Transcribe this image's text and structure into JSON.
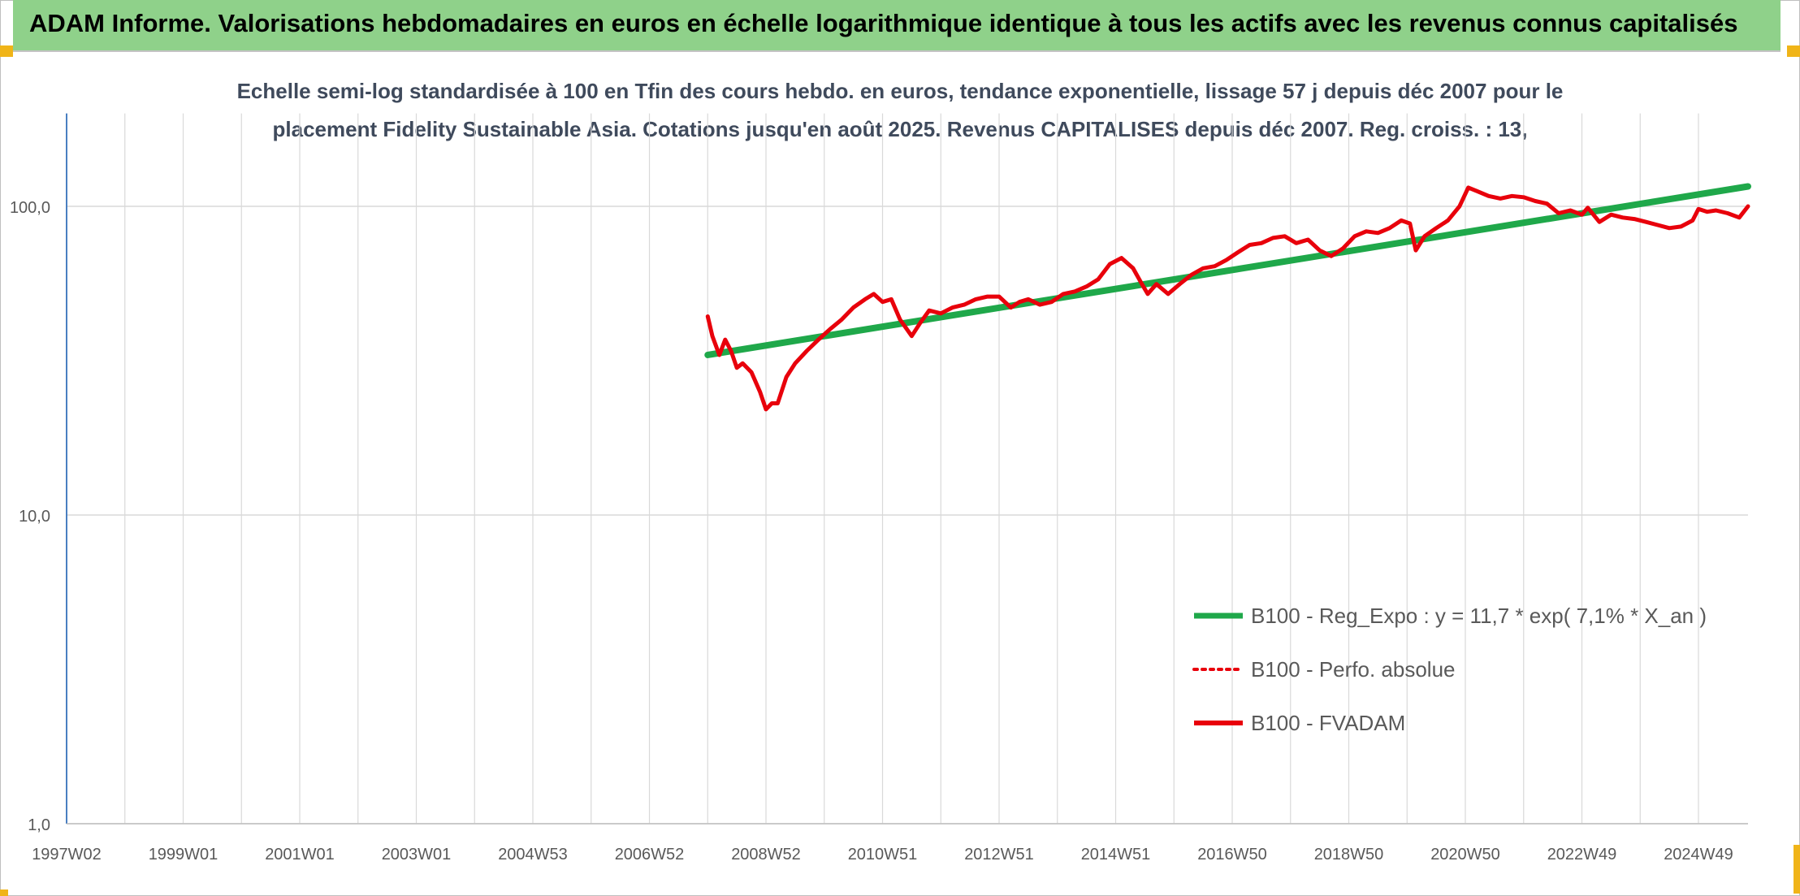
{
  "header": {
    "title": "ADAM Informe. Valorisations hebdomadaires en euros en échelle logarithmique identique à tous les actifs avec les revenus connus capitalisés"
  },
  "colors": {
    "title_bar": "#8fd18a",
    "trend": "#1fa84a",
    "series": "#e8000b",
    "accent_corner": "#f0b418",
    "grid": "#d9d9d9"
  },
  "chart_data": {
    "type": "line",
    "title": "",
    "subtitle_lines": [
      "Echelle semi-log standardisée à 100 en Tfin des cours hebdo. en euros, tendance exponentielle, lissage 57 j depuis déc 2007 pour le",
      "placement Fidelity Sustainable Asia. Cotations jusqu'en août 2025. Revenus CAPITALISES depuis déc 2007. Reg. croiss. : 13,"
    ],
    "y_scale": "log",
    "ylim": [
      1,
      200
    ],
    "y_ticks": [
      "1,0",
      "10,0",
      "100,0"
    ],
    "y_tick_values": [
      1,
      10,
      100
    ],
    "x_range": [
      1997.0,
      2025.85
    ],
    "x_tick_labels": [
      "1997W02",
      "1999W01",
      "2001W01",
      "2003W01",
      "2004W53",
      "2006W52",
      "2008W52",
      "2010W51",
      "2012W51",
      "2014W51",
      "2016W50",
      "2018W50",
      "2020W50",
      "2022W49",
      "2024W49"
    ],
    "x_tick_values": [
      1997,
      1999,
      2001,
      2003,
      2005,
      2007,
      2009,
      2011,
      2013,
      2015,
      2017,
      2019,
      2021,
      2023,
      2025
    ],
    "grid": "on",
    "legend_position": "bottom-right",
    "series": [
      {
        "name": "B100 - Reg_Expo : y = 11,7 * exp( 7,1% *  X_an )",
        "style": "solid-thick",
        "color": "#1fa84a",
        "x": [
          2008.0,
          2025.85
        ],
        "y": [
          33.0,
          116.0
        ]
      },
      {
        "name": "B100 - Perfo. absolue",
        "style": "dotted",
        "color": "#e8000b",
        "x": [],
        "y": []
      },
      {
        "name": "B100 - FVADAM",
        "style": "solid-thick",
        "color": "#e8000b",
        "x": [
          2008.0,
          2008.08,
          2008.2,
          2008.3,
          2008.4,
          2008.5,
          2008.6,
          2008.75,
          2008.9,
          2009.0,
          2009.1,
          2009.2,
          2009.35,
          2009.5,
          2009.7,
          2009.9,
          2010.1,
          2010.3,
          2010.5,
          2010.7,
          2010.85,
          2011.0,
          2011.15,
          2011.3,
          2011.5,
          2011.65,
          2011.8,
          2012.0,
          2012.2,
          2012.4,
          2012.6,
          2012.8,
          2013.0,
          2013.2,
          2013.35,
          2013.5,
          2013.7,
          2013.9,
          2014.1,
          2014.3,
          2014.5,
          2014.7,
          2014.9,
          2015.1,
          2015.3,
          2015.45,
          2015.55,
          2015.7,
          2015.9,
          2016.1,
          2016.3,
          2016.5,
          2016.7,
          2016.9,
          2017.1,
          2017.3,
          2017.5,
          2017.7,
          2017.9,
          2018.1,
          2018.3,
          2018.5,
          2018.7,
          2018.9,
          2019.1,
          2019.3,
          2019.5,
          2019.7,
          2019.9,
          2020.05,
          2020.15,
          2020.3,
          2020.5,
          2020.7,
          2020.9,
          2021.05,
          2021.2,
          2021.4,
          2021.6,
          2021.8,
          2022.0,
          2022.2,
          2022.4,
          2022.6,
          2022.8,
          2023.0,
          2023.1,
          2023.3,
          2023.5,
          2023.7,
          2023.9,
          2024.1,
          2024.3,
          2024.5,
          2024.7,
          2024.9,
          2025.0,
          2025.15,
          2025.3,
          2025.5,
          2025.7,
          2025.85
        ],
        "y": [
          44,
          38,
          33,
          37,
          34,
          30,
          31,
          29,
          25,
          22,
          23,
          23,
          28,
          31,
          34,
          37,
          40,
          43,
          47,
          50,
          52,
          49,
          50,
          43,
          38,
          42,
          46,
          45,
          47,
          48,
          50,
          51,
          51,
          47,
          49,
          50,
          48,
          49,
          52,
          53,
          55,
          58,
          65,
          68,
          63,
          56,
          52,
          56,
          52,
          56,
          60,
          63,
          64,
          67,
          71,
          75,
          76,
          79,
          80,
          76,
          78,
          72,
          69,
          73,
          80,
          83,
          82,
          85,
          90,
          88,
          72,
          80,
          85,
          90,
          100,
          115,
          112,
          108,
          106,
          108,
          107,
          104,
          102,
          95,
          97,
          94,
          99,
          89,
          94,
          92,
          91,
          89,
          87,
          85,
          86,
          90,
          98,
          96,
          97,
          95,
          92,
          100
        ]
      }
    ]
  }
}
